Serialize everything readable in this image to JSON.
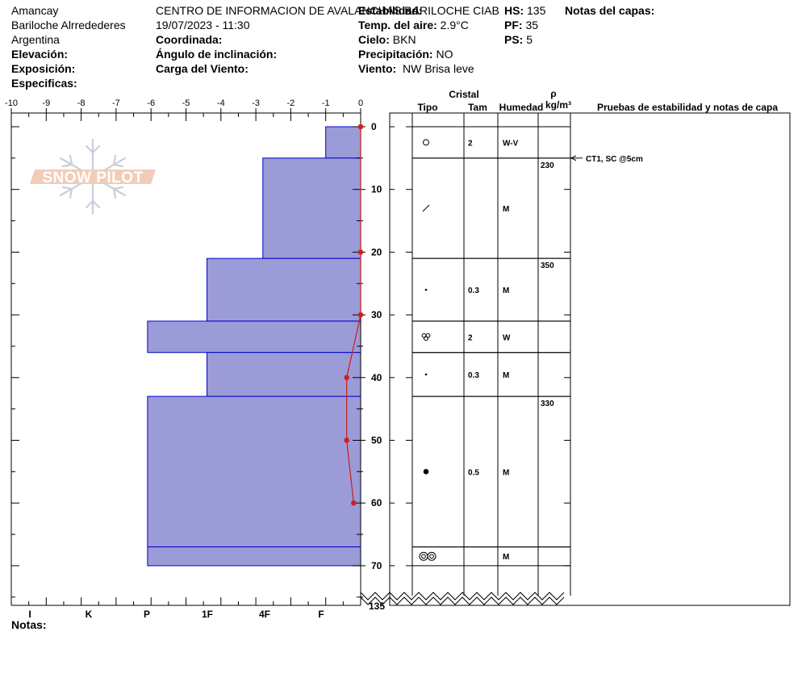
{
  "header": {
    "col1": [
      "Amancay",
      "Bariloche Alrredederes",
      "Argentina"
    ],
    "elevation_label": "Elevación:",
    "exposure_label": "Exposición:",
    "specifics_label": "Especificas:",
    "center": "CENTRO DE INFORMACION DE AVALANCHAS BARILOCHE CIAB",
    "datetime": "19/07/2023 - 11:30",
    "coordinate_label": "Coordinada:",
    "slope_label": "Ángulo de inclinación:",
    "wind_load_label": "Carga del Viento:",
    "stability_label": "Estabilidad:",
    "air_temp_label": "Temp. del aire:",
    "air_temp_value": "2.9°C",
    "sky_label": "Cielo:",
    "sky_value": "BKN",
    "precip_label": "Precipitación:",
    "precip_value": "NO",
    "wind_label": "Viento:",
    "wind_value": "NW Brisa leve",
    "hs_label": "HS:",
    "hs_value": "135",
    "pf_label": "PF:",
    "pf_value": "35",
    "ps_label": "PS:",
    "ps_value": "5",
    "layer_notes_label": "Notas del capas:"
  },
  "notes_label": "Notas:",
  "logo_text": "SNOW PILOT",
  "colors": {
    "hardness_fill": "#9b9bd8",
    "hardness_stroke": "#0000cc",
    "temp_line": "#cc2222"
  },
  "chart_data": {
    "type": "bar",
    "temp_axis": {
      "ticks": [
        "-10",
        "-9",
        "-8",
        "-7",
        "-6",
        "-5",
        "-4",
        "-3",
        "-2",
        "-1",
        "0"
      ],
      "range": [
        -10,
        0
      ]
    },
    "depth_axis": {
      "ticks": [
        "0",
        "10",
        "20",
        "30",
        "40",
        "50",
        "60",
        "70"
      ],
      "range": [
        0,
        77
      ],
      "bottom_label": "135"
    },
    "hardness_axis": {
      "labels": [
        "I",
        "K",
        "P",
        "1F",
        "4F",
        "F"
      ]
    },
    "hardness_layers": [
      {
        "top": 0,
        "bottom": 5,
        "hardness": 1.0
      },
      {
        "top": 5,
        "bottom": 21,
        "hardness": 2.8
      },
      {
        "top": 21,
        "bottom": 31,
        "hardness": 4.4
      },
      {
        "top": 31,
        "bottom": 36,
        "hardness": 6.1
      },
      {
        "top": 36,
        "bottom": 43,
        "hardness": 4.4
      },
      {
        "top": 43,
        "bottom": 67,
        "hardness": 6.1
      },
      {
        "top": 67,
        "bottom": 70,
        "hardness": 6.1
      }
    ],
    "temperature_profile": [
      {
        "depth": 0,
        "temp": 0
      },
      {
        "depth": 20,
        "temp": 0
      },
      {
        "depth": 30,
        "temp": 0
      },
      {
        "depth": 40,
        "temp": -0.4
      },
      {
        "depth": 50,
        "temp": -0.4
      },
      {
        "depth": 60,
        "temp": -0.2
      }
    ],
    "table": {
      "title_cristal": "Cristal",
      "col_tipo": "Tipo",
      "col_tam": "Tam",
      "col_humedad": "Humedad",
      "col_rho": "ρ",
      "col_rho_unit": "kg/m³",
      "col_tests": "Pruebas de estabilidad y notas de capa",
      "rows": [
        {
          "top": 0,
          "bottom": 5,
          "grain": "circle",
          "tam": "2",
          "humedad": "W-V",
          "density": ""
        },
        {
          "top": 5,
          "bottom": 21,
          "grain": "slash",
          "tam": "",
          "humedad": "M",
          "density": "230"
        },
        {
          "top": 21,
          "bottom": 31,
          "grain": "dot-small",
          "tam": "0.3",
          "humedad": "M",
          "density": "350"
        },
        {
          "top": 31,
          "bottom": 36,
          "grain": "cluster",
          "tam": "2",
          "humedad": "W",
          "density": ""
        },
        {
          "top": 36,
          "bottom": 43,
          "grain": "dot-small",
          "tam": "0.3",
          "humedad": "M",
          "density": ""
        },
        {
          "top": 43,
          "bottom": 67,
          "grain": "dot-large",
          "tam": "0.5",
          "humedad": "M",
          "density": "330"
        },
        {
          "top": 67,
          "bottom": 70,
          "grain": "double-ring",
          "tam": "",
          "humedad": "M",
          "density": ""
        }
      ],
      "test_note": {
        "depth": 5,
        "text": "CT1, SC @5cm"
      }
    }
  }
}
